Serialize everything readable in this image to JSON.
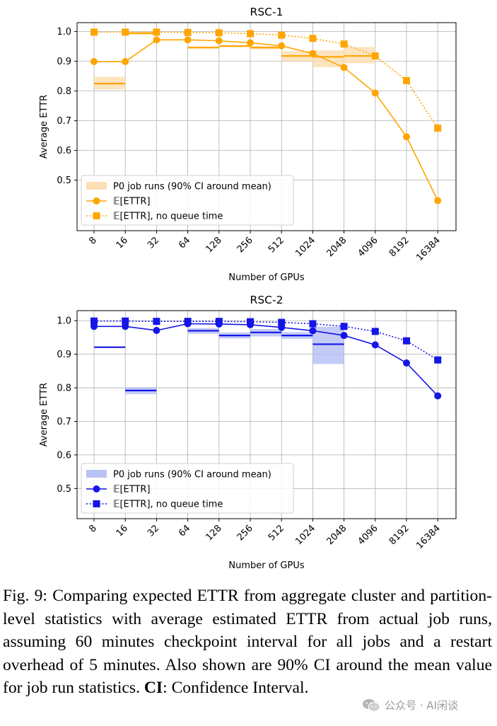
{
  "chart_data": [
    {
      "type": "line",
      "title": "RSC-1",
      "xlabel": "Number of GPUs",
      "ylabel": "Average ETTR",
      "categories": [
        "8",
        "16",
        "32",
        "64",
        "128",
        "256",
        "512",
        "1024",
        "2048",
        "4096",
        "8192",
        "16384"
      ],
      "ylim": [
        0.33,
        1.03
      ],
      "yticks": [
        "0.5",
        "0.6",
        "0.7",
        "0.8",
        "0.9",
        "1.0"
      ],
      "grid": true,
      "legend_position": "lower-left",
      "color": "#FFA500",
      "band_color": "#FDDFB5",
      "series": [
        {
          "name": "𝔼[ETTR]",
          "style": "solid-circle",
          "values": [
            0.899,
            0.899,
            0.972,
            0.972,
            0.969,
            0.962,
            0.952,
            0.926,
            0.879,
            0.793,
            0.646,
            0.431
          ]
        },
        {
          "name": "𝔼[ETTR], no queue time",
          "style": "dotted-square",
          "values": [
            0.998,
            0.998,
            0.998,
            0.997,
            0.996,
            0.993,
            0.988,
            0.977,
            0.958,
            0.918,
            0.835,
            0.675
          ]
        }
      ],
      "p0": {
        "name": "P0 job runs (90% CI around mean)",
        "bins": [
          {
            "from": "8",
            "to": "16",
            "mean": 0.825,
            "low": 0.805,
            "high": 0.848
          },
          {
            "from": "16",
            "to": "32",
            "mean": 0.994,
            "low": 0.991,
            "high": 0.997
          },
          {
            "from": "64",
            "to": "128",
            "mean": 0.946,
            "low": 0.943,
            "high": 0.95
          },
          {
            "from": "128",
            "to": "256",
            "mean": 0.951,
            "low": 0.948,
            "high": 0.955
          },
          {
            "from": "256",
            "to": "512",
            "mean": 0.946,
            "low": 0.941,
            "high": 0.951
          },
          {
            "from": "512",
            "to": "1024",
            "mean": 0.918,
            "low": 0.9,
            "high": 0.934
          },
          {
            "from": "1024",
            "to": "2048",
            "mean": 0.915,
            "low": 0.88,
            "high": 0.937
          },
          {
            "from": "2048",
            "to": "4096",
            "mean": 0.918,
            "low": 0.893,
            "high": 0.948
          }
        ]
      }
    },
    {
      "type": "line",
      "title": "RSC-2",
      "xlabel": "Number of GPUs",
      "ylabel": "Average ETTR",
      "categories": [
        "8",
        "16",
        "32",
        "64",
        "128",
        "256",
        "512",
        "1024",
        "2048",
        "4096",
        "8192",
        "16384"
      ],
      "ylim": [
        0.41,
        1.03
      ],
      "yticks": [
        "0.5",
        "0.6",
        "0.7",
        "0.8",
        "0.9",
        "1.0"
      ],
      "grid": true,
      "legend_position": "lower-left",
      "color": "#1515E8",
      "band_color": "#B8C2F4",
      "series": [
        {
          "name": "𝔼[ETTR]",
          "style": "solid-circle",
          "values": [
            0.983,
            0.983,
            0.971,
            0.991,
            0.99,
            0.988,
            0.98,
            0.97,
            0.956,
            0.928,
            0.874,
            0.776
          ]
        },
        {
          "name": "𝔼[ETTR], no queue time",
          "style": "dotted-square",
          "values": [
            0.999,
            0.999,
            0.998,
            0.998,
            0.998,
            0.997,
            0.995,
            0.991,
            0.983,
            0.968,
            0.94,
            0.883
          ]
        }
      ],
      "p0": {
        "name": "P0 job runs (90% CI around mean)",
        "bins": [
          {
            "from": "8",
            "to": "16",
            "mean": 0.921,
            "low": 0.919,
            "high": 0.923
          },
          {
            "from": "16",
            "to": "32",
            "mean": 0.792,
            "low": 0.781,
            "high": 0.802
          },
          {
            "from": "64",
            "to": "128",
            "mean": 0.97,
            "low": 0.961,
            "high": 0.978
          },
          {
            "from": "128",
            "to": "256",
            "mean": 0.956,
            "low": 0.947,
            "high": 0.965
          },
          {
            "from": "256",
            "to": "512",
            "mean": 0.965,
            "low": 0.953,
            "high": 0.975
          },
          {
            "from": "512",
            "to": "1024",
            "mean": 0.956,
            "low": 0.946,
            "high": 0.966
          },
          {
            "from": "1024",
            "to": "2048",
            "mean": 0.93,
            "low": 0.871,
            "high": 0.982
          }
        ]
      }
    }
  ],
  "caption": {
    "label": "Fig. 9:",
    "text": "Comparing expected ETTR from aggregate cluster and partition-level statistics with average estimated ETTR from actual job runs, assuming 60 minutes checkpoint interval for all jobs and a restart overhead of 5 minutes. Also shown are 90% CI around the mean value for job run statistics.",
    "term": "CI",
    "term_definition": ": Confidence Interval."
  },
  "watermark": {
    "text": "公众号 · AI闲谈",
    "icon": "wechat-icon"
  }
}
